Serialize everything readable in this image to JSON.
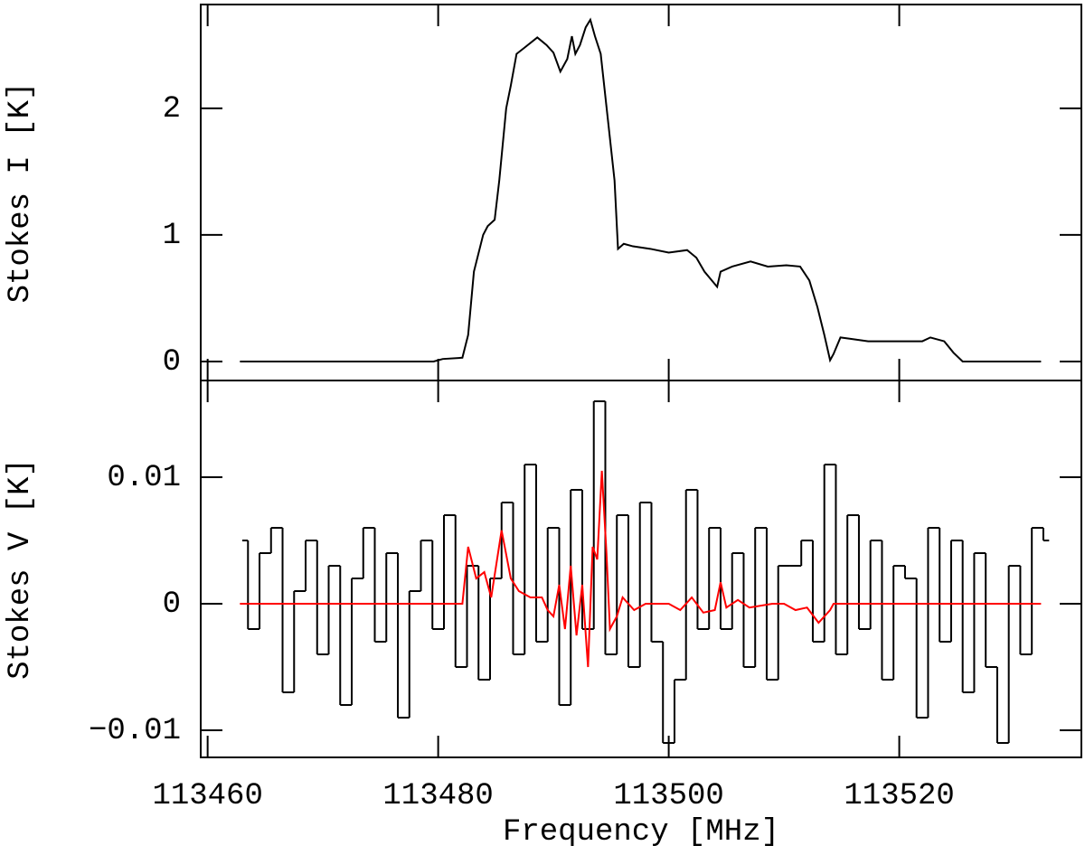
{
  "chart_data": [
    {
      "type": "line",
      "ylabel": "Stokes I [K]",
      "xlim": [
        113459.4,
        113535.8
      ],
      "ylim": [
        -0.15,
        2.82
      ],
      "yticks": [
        0,
        1,
        2
      ],
      "series": [
        {
          "color": "#000000",
          "x": [
            113462.8,
            113465.5,
            113469.4,
            113473.3,
            113479.6,
            113480.4,
            113482.1,
            113482.6,
            113483.1,
            113483.9,
            113484.3,
            113484.9,
            113485.3,
            113485.9,
            113486.3,
            113486.8,
            113487.5,
            113488.6,
            113489.4,
            113490.0,
            113490.6,
            113491.2,
            113491.6,
            113491.9,
            113492.3,
            113492.8,
            113493.2,
            113493.6,
            113494.1,
            113494.7,
            113495.3,
            113495.6,
            113496.1,
            113496.9,
            113498.4,
            113500.0,
            113501.6,
            113502.4,
            113503.1,
            113504.2,
            113504.5,
            113505.5,
            113507.1,
            113508.6,
            113510.2,
            113511.4,
            113512.2,
            113512.9,
            113513.5,
            113514.0,
            113514.3,
            113514.9,
            113515.7,
            113517.3,
            113519.6,
            113522.0,
            113522.7,
            113523.9,
            113524.7,
            113525.5,
            113528.2,
            113532.3
          ],
          "values": [
            0,
            0,
            0,
            0,
            0,
            0.02,
            0.03,
            0.21,
            0.71,
            1.0,
            1.07,
            1.12,
            1.43,
            2.0,
            2.18,
            2.43,
            2.48,
            2.56,
            2.5,
            2.44,
            2.29,
            2.39,
            2.57,
            2.43,
            2.5,
            2.64,
            2.7,
            2.57,
            2.43,
            1.93,
            1.43,
            0.89,
            0.93,
            0.91,
            0.89,
            0.86,
            0.88,
            0.82,
            0.71,
            0.59,
            0.71,
            0.75,
            0.79,
            0.75,
            0.76,
            0.75,
            0.64,
            0.43,
            0.21,
            0.01,
            0.06,
            0.19,
            0.18,
            0.16,
            0.16,
            0.16,
            0.19,
            0.16,
            0.07,
            0,
            0,
            0
          ]
        }
      ]
    },
    {
      "type": "line",
      "ylabel": "Stokes V [K]",
      "xlabel": "Frequency [MHz]",
      "xlim": [
        113459.4,
        113535.8
      ],
      "ylim": [
        -0.01214,
        0.01764
      ],
      "xticks": [
        113460,
        113480,
        113500,
        113520
      ],
      "yticks": [
        {
          "value": -0.01,
          "label": "−0.01"
        },
        0,
        0.01
      ],
      "series": [
        {
          "color": "#000000",
          "drawstyle": "steps-mid",
          "x": [
            113463,
            113464,
            113465,
            113466,
            113467,
            113468,
            113469,
            113470,
            113471,
            113472,
            113473,
            113474,
            113475,
            113476,
            113477,
            113478,
            113479,
            113480,
            113481,
            113482,
            113483,
            113484,
            113485,
            113486,
            113487,
            113488,
            113489,
            113490,
            113491,
            113492,
            113493,
            113494,
            113495,
            113496,
            113497,
            113498,
            113499,
            113500,
            113501,
            113502,
            113503,
            113504,
            113505,
            113506,
            113507,
            113508,
            113509,
            113510,
            113511,
            113512,
            113513,
            113514,
            113515,
            113516,
            113517,
            113518,
            113519,
            113520,
            113521,
            113522,
            113523,
            113524,
            113525,
            113526,
            113527,
            113528,
            113529,
            113530,
            113531,
            113532,
            113533
          ],
          "values": [
            0.005,
            -0.002,
            0.004,
            0.006,
            -0.007,
            0.001,
            0.005,
            -0.004,
            0.003,
            -0.008,
            0.002,
            0.006,
            -0.003,
            0.004,
            -0.009,
            0.001,
            0.005,
            -0.002,
            0.007,
            -0.005,
            0.003,
            -0.006,
            0.002,
            0.008,
            -0.004,
            0.011,
            -0.003,
            0.006,
            -0.008,
            0.009,
            -0.002,
            0.016,
            -0.004,
            0.007,
            -0.005,
            0.008,
            -0.003,
            -0.011,
            -0.006,
            0.009,
            -0.002,
            0.006,
            -0.002,
            0.004,
            -0.005,
            0.006,
            -0.006,
            0.003,
            0.003,
            0.005,
            -0.003,
            0.011,
            -0.004,
            0.007,
            -0.002,
            0.005,
            -0.006,
            0.003,
            0.002,
            -0.009,
            0.006,
            -0.003,
            0.005,
            -0.007,
            0.004,
            -0.005,
            -0.011,
            0.003,
            -0.004,
            0.006,
            0.005
          ]
        },
        {
          "color": "#ff0000",
          "x": [
            113462.8,
            113482.1,
            113482.6,
            113483.3,
            113484.0,
            113484.6,
            113485.5,
            113486.3,
            113487.0,
            113488.0,
            113489.0,
            113489.5,
            113490.0,
            113490.5,
            113491.0,
            113491.5,
            113492.0,
            113492.5,
            113493.0,
            113493.4,
            113493.8,
            113494.2,
            113494.6,
            113494.9,
            113495.5,
            113496.0,
            113497.0,
            113498.0,
            113500.0,
            113501.0,
            113502.0,
            113503.0,
            113504.0,
            113504.5,
            113505.0,
            113506.0,
            113507.0,
            113509.0,
            113510.0,
            113511.0,
            113512.0,
            113513.0,
            113514.0,
            113514.3,
            113532.3
          ],
          "values": [
            0,
            0,
            0.0045,
            0.002,
            0.0025,
            0.0005,
            0.0058,
            0.002,
            0.001,
            0.0005,
            0.0005,
            -0.0005,
            -0.001,
            0.0015,
            -0.002,
            0.003,
            -0.0025,
            0.0015,
            -0.005,
            0.0045,
            0.0035,
            0.0105,
            0.004,
            -0.002,
            -0.001,
            0.0005,
            -0.0005,
            0,
            0,
            -0.0005,
            0.0005,
            -0.0007,
            -0.0005,
            0.0017,
            -0.0003,
            0.0003,
            -0.0003,
            0,
            0,
            -0.0005,
            -0.0003,
            -0.0015,
            -0.0005,
            0,
            0
          ]
        }
      ]
    }
  ]
}
